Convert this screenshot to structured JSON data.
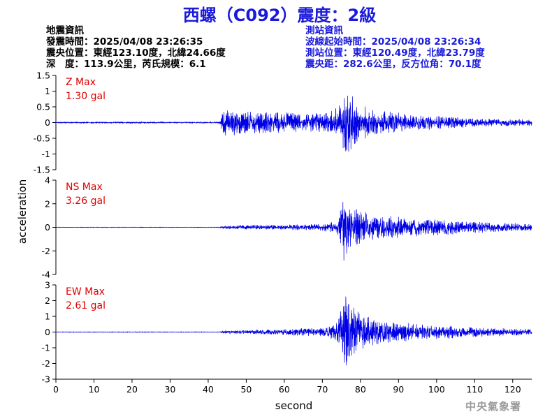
{
  "title": "西螺（C092）震度：2級",
  "event_info": {
    "heading": "地震資訊",
    "origin_time": "發震時間：2025/04/08 23:26:35",
    "epicenter": "震央位置：東經123.10度，北緯24.66度",
    "depth_magnitude": "深　度：113.9公里，芮氏規模：6.1"
  },
  "station_info": {
    "heading": "測站資訊",
    "arrival_time": "波線起始時間：2025/04/08 23:26:34",
    "station_location": "測站位置：東經120.49度，北緯23.79度",
    "distance_azimuth": "震央距：282.6公里，反方位角：70.1度"
  },
  "credit": "中央氣象署",
  "colors": {
    "trace": "#0000e6",
    "max_label": "#e00000",
    "title": "#1a1adc"
  },
  "chart_data": {
    "type": "line",
    "xlabel": "second",
    "ylabel": "acceleration",
    "xlim": [
      0,
      125
    ],
    "xticks": [
      0,
      10,
      20,
      30,
      40,
      50,
      60,
      70,
      80,
      90,
      100,
      110,
      120
    ],
    "grid": false,
    "panels": [
      {
        "name": "Z",
        "max_label": "Z Max",
        "max_value": "1.30 gal",
        "ylim": [
          -1.5,
          1.5
        ],
        "yticks": [
          1.5,
          1,
          0.5,
          0,
          -0.5,
          -1,
          -1.5
        ],
        "envelope": [
          [
            0,
            0.02
          ],
          [
            43,
            0.02
          ],
          [
            43.5,
            0.4
          ],
          [
            46,
            0.45
          ],
          [
            55,
            0.35
          ],
          [
            65,
            0.3
          ],
          [
            72,
            0.35
          ],
          [
            75,
            0.7
          ],
          [
            77,
            1.3
          ],
          [
            78,
            1.0
          ],
          [
            80,
            0.6
          ],
          [
            85,
            0.4
          ],
          [
            95,
            0.25
          ],
          [
            110,
            0.15
          ],
          [
            125,
            0.1
          ]
        ]
      },
      {
        "name": "NS",
        "max_label": "NS Max",
        "max_value": "3.26 gal",
        "ylim": [
          -4,
          4
        ],
        "yticks": [
          4,
          2,
          0,
          -2,
          -4
        ],
        "envelope": [
          [
            0,
            0.02
          ],
          [
            43,
            0.02
          ],
          [
            44,
            0.15
          ],
          [
            55,
            0.2
          ],
          [
            70,
            0.3
          ],
          [
            74,
            0.6
          ],
          [
            75.5,
            3.26
          ],
          [
            77,
            2.0
          ],
          [
            80,
            1.4
          ],
          [
            85,
            1.0
          ],
          [
            95,
            0.8
          ],
          [
            110,
            0.5
          ],
          [
            125,
            0.3
          ]
        ]
      },
      {
        "name": "EW",
        "max_label": "EW Max",
        "max_value": "2.61 gal",
        "ylim": [
          -3,
          3
        ],
        "yticks": [
          3,
          2,
          1,
          0,
          -1,
          -2,
          -3
        ],
        "envelope": [
          [
            0,
            0.02
          ],
          [
            43,
            0.02
          ],
          [
            44,
            0.1
          ],
          [
            55,
            0.15
          ],
          [
            70,
            0.3
          ],
          [
            74,
            0.6
          ],
          [
            76,
            2.61
          ],
          [
            78,
            1.8
          ],
          [
            80,
            1.2
          ],
          [
            85,
            0.8
          ],
          [
            95,
            0.5
          ],
          [
            110,
            0.35
          ],
          [
            125,
            0.2
          ]
        ]
      }
    ]
  }
}
